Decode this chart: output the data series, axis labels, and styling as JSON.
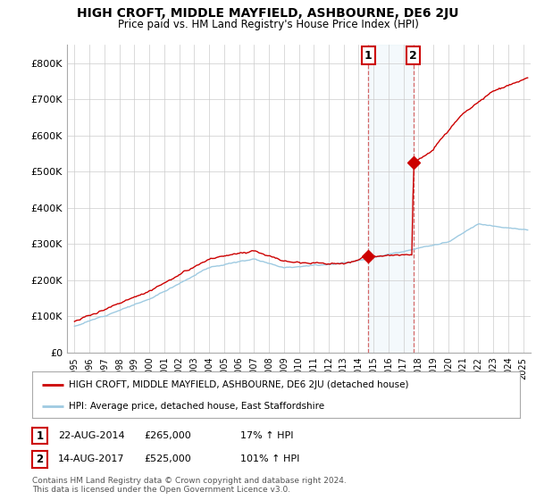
{
  "title": "HIGH CROFT, MIDDLE MAYFIELD, ASHBOURNE, DE6 2JU",
  "subtitle": "Price paid vs. HM Land Registry's House Price Index (HPI)",
  "legend_line1": "HIGH CROFT, MIDDLE MAYFIELD, ASHBOURNE, DE6 2JU (detached house)",
  "legend_line2": "HPI: Average price, detached house, East Staffordshire",
  "annotation1_label": "1",
  "annotation1_date": "22-AUG-2014",
  "annotation1_price": "£265,000",
  "annotation1_hpi": "17% ↑ HPI",
  "annotation1_year": 2014.65,
  "annotation1_value": 265000,
  "annotation2_label": "2",
  "annotation2_date": "14-AUG-2017",
  "annotation2_price": "£525,000",
  "annotation2_hpi": "101% ↑ HPI",
  "annotation2_year": 2017.65,
  "annotation2_value": 525000,
  "footer": "Contains HM Land Registry data © Crown copyright and database right 2024.\nThis data is licensed under the Open Government Licence v3.0.",
  "hpi_color": "#9ecae1",
  "paid_color": "#cc0000",
  "background_color": "#ffffff",
  "grid_color": "#cccccc",
  "ylim": [
    0,
    850000
  ],
  "yticks": [
    0,
    100000,
    200000,
    300000,
    400000,
    500000,
    600000,
    700000,
    800000
  ],
  "ytick_labels": [
    "£0",
    "£100K",
    "£200K",
    "£300K",
    "£400K",
    "£500K",
    "£600K",
    "£700K",
    "£800K"
  ],
  "xlim_start": 1994.5,
  "xlim_end": 2025.5,
  "xticks": [
    1995,
    1996,
    1997,
    1998,
    1999,
    2000,
    2001,
    2002,
    2003,
    2004,
    2005,
    2006,
    2007,
    2008,
    2009,
    2010,
    2011,
    2012,
    2013,
    2014,
    2015,
    2016,
    2017,
    2018,
    2019,
    2020,
    2021,
    2022,
    2023,
    2024,
    2025
  ]
}
